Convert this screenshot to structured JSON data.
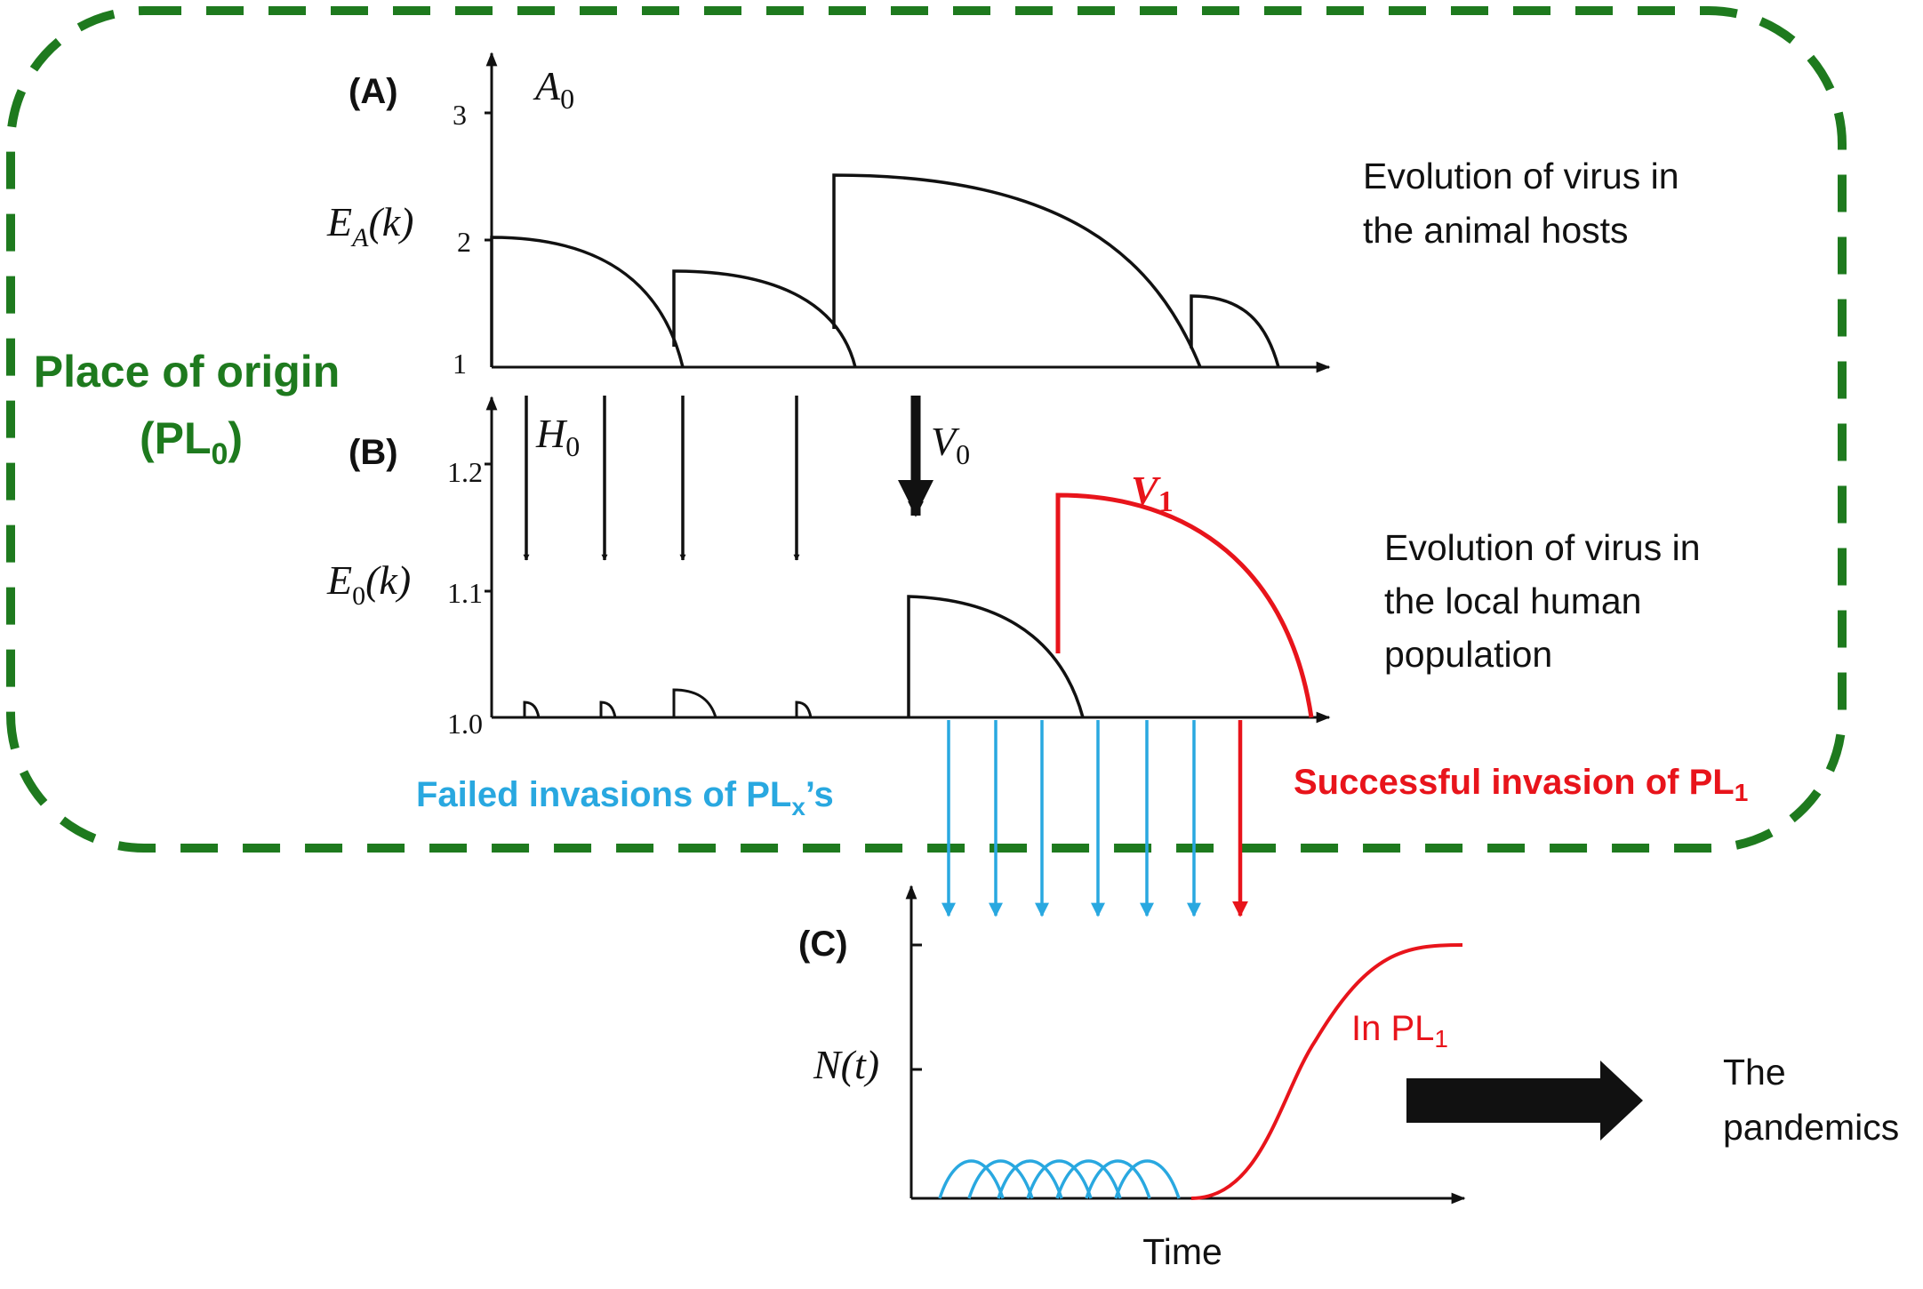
{
  "region": {
    "title_line1": "Place of origin",
    "title_line2_prefix": "(PL",
    "title_line2_sub": "0",
    "title_line2_suffix": ")",
    "border_color": "#1e7a1e"
  },
  "panel_a": {
    "label": "(A)",
    "y_ticks": [
      "1",
      "2",
      "3"
    ],
    "top_label_base": "A",
    "top_label_sub": "0",
    "axis_label": "E",
    "axis_label_sub": "A",
    "axis_label_arg": "(k)",
    "description_line1": "Evolution of virus in",
    "description_line2": "the animal hosts"
  },
  "panel_b": {
    "label": "(B)",
    "y_ticks": [
      "1.0",
      "1.1",
      "1.2"
    ],
    "h_label_base": "H",
    "h_label_sub": "0",
    "v0_label_base": "V",
    "v0_label_sub": "0",
    "v1_label_base": "V",
    "v1_label_sub": "1",
    "axis_label": "E",
    "axis_label_sub": "0",
    "axis_label_arg": "(k)",
    "description_line1": "Evolution of virus in",
    "description_line2": "the local human",
    "description_line3": "population"
  },
  "invasions": {
    "failed_prefix": "Failed invasions of PL",
    "failed_sub": "x",
    "failed_suffix": "’s",
    "success_prefix": "Successful invasion of PL",
    "success_sub": "1",
    "failed_color": "#29a8e0",
    "success_color": "#e8141b"
  },
  "panel_c": {
    "label": "(C)",
    "y_label": "N(t)",
    "x_label": "Time",
    "curve_label_prefix": "In PL",
    "curve_label_sub": "1",
    "outcome_line1": "The",
    "outcome_line2": "pandemics"
  }
}
